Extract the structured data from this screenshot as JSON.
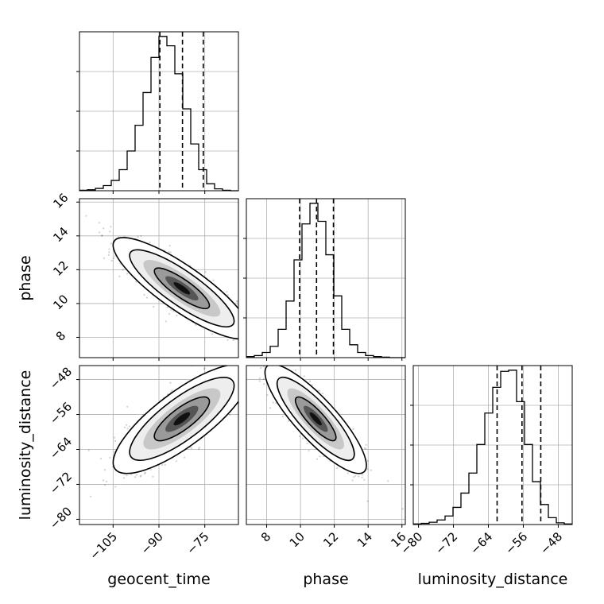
{
  "chart_data": {
    "type": "corner",
    "grid": true,
    "parameters": [
      {
        "name": "geocent_time",
        "range": [
          -116,
          -64
        ],
        "ticks": [
          "−105",
          "−90",
          "−75"
        ],
        "tick_values": [
          -105,
          -90,
          -75
        ]
      },
      {
        "name": "phase",
        "range": [
          6.8,
          16.2
        ],
        "ticks": [
          "8",
          "10",
          "12",
          "14",
          "16"
        ],
        "tick_values": [
          8,
          10,
          12,
          14,
          16
        ],
        "ticks_2d": [
          "8",
          "10",
          "12",
          "14",
          "16"
        ],
        "ticks_2d_values": [
          8,
          10,
          12,
          14,
          16
        ]
      },
      {
        "name": "luminosity_distance",
        "range": [
          -81.2,
          -44.8
        ],
        "ticks": [
          "−80",
          "−72",
          "−64",
          "−56",
          "−48"
        ],
        "tick_values": [
          -80,
          -72,
          -64,
          -56,
          -48
        ]
      }
    ],
    "histograms": [
      {
        "parameter": "geocent_time",
        "bin_edges": [
          -116,
          -113.4,
          -110.8,
          -108.2,
          -105.6,
          -103,
          -100.4,
          -97.8,
          -95.2,
          -92.6,
          -90,
          -87.4,
          -84.8,
          -82.2,
          -79.6,
          -77,
          -74.4,
          -71.8,
          -69.2,
          -66.6,
          -64
        ],
        "counts": [
          1,
          2,
          5,
          11,
          22,
          45,
          85,
          140,
          210,
          285,
          330,
          310,
          250,
          175,
          100,
          45,
          15,
          4,
          1,
          0
        ],
        "quantiles": [
          -89.7,
          -82.3,
          -75.5
        ]
      },
      {
        "parameter": "phase",
        "bin_edges": [
          6.8,
          7.27,
          7.74,
          8.21,
          8.68,
          9.15,
          9.62,
          10.09,
          10.56,
          11.03,
          11.5,
          11.97,
          12.44,
          12.91,
          13.38,
          13.85,
          14.32,
          14.79,
          15.26,
          15.73,
          16.2
        ],
        "counts": [
          2,
          4,
          10,
          22,
          55,
          110,
          190,
          260,
          300,
          265,
          200,
          120,
          55,
          25,
          10,
          4,
          2,
          1,
          0,
          0
        ],
        "quantiles": [
          9.95,
          10.95,
          11.95
        ]
      },
      {
        "parameter": "luminosity_distance",
        "bin_edges": [
          -81.2,
          -79.38,
          -77.56,
          -75.74,
          -73.92,
          -72.1,
          -70.28,
          -68.46,
          -66.64,
          -64.82,
          -63,
          -61.18,
          -59.36,
          -57.54,
          -55.72,
          -53.9,
          -52.08,
          -50.26,
          -48.44,
          -46.62,
          -44.8
        ],
        "counts": [
          1,
          2,
          4,
          8,
          15,
          30,
          55,
          90,
          140,
          195,
          240,
          268,
          270,
          215,
          140,
          75,
          35,
          12,
          3,
          1
        ],
        "quantiles": [
          -62,
          -56.3,
          -52
        ]
      }
    ],
    "pairs": [
      {
        "x": "geocent_time",
        "y": "phase",
        "mean": [
          -82.5,
          10.9
        ],
        "sd": [
          9,
          1.2
        ],
        "correlation": -0.85
      },
      {
        "x": "geocent_time",
        "y": "luminosity_distance",
        "mean": [
          -82.5,
          -57
        ],
        "sd": [
          9,
          5
        ],
        "correlation": 0.8
      },
      {
        "x": "phase",
        "y": "luminosity_distance",
        "mean": [
          10.9,
          -57
        ],
        "sd": [
          1.2,
          5
        ],
        "correlation": -0.85
      }
    ]
  }
}
